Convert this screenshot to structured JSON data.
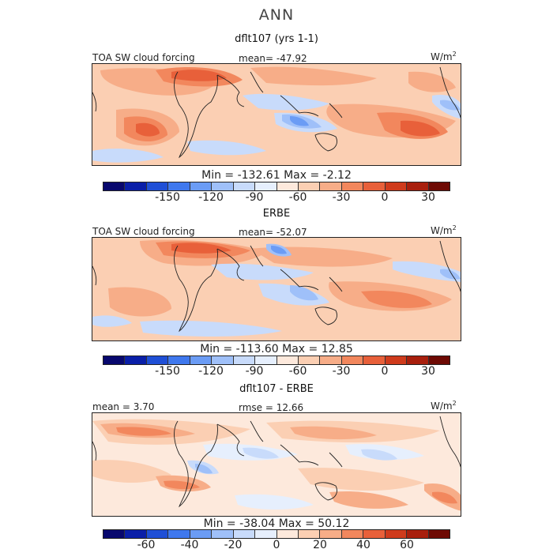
{
  "title": "ANN",
  "colors": {
    "scale": [
      "#08086e",
      "#0a1fa8",
      "#1f4fd6",
      "#3f78ee",
      "#6b9cf5",
      "#9fc0f9",
      "#c8dbfb",
      "#e6effd",
      "#fde9dc",
      "#fbcfb3",
      "#f7ad88",
      "#f2875d",
      "#e8603a",
      "#cf3b1c",
      "#a81f0d",
      "#6e0a04"
    ]
  },
  "panels": [
    {
      "title": "dflt107 (yrs 1-1)",
      "left_label": "TOA SW cloud forcing",
      "center_label": "mean= -47.92",
      "units": "W/m",
      "units_sup": "2",
      "min_label": "Min = -132.61 Max =  -2.12",
      "ticks": [
        "-150",
        "-120",
        "-90",
        "-60",
        "-30",
        "0",
        "30"
      ]
    },
    {
      "title": "ERBE",
      "left_label": "TOA SW cloud forcing",
      "center_label": "mean= -52.07",
      "units": "W/m",
      "units_sup": "2",
      "min_label": "Min = -113.60 Max =  12.85",
      "ticks": [
        "-150",
        "-120",
        "-90",
        "-60",
        "-30",
        "0",
        "30"
      ]
    },
    {
      "title": "dflt107 - ERBE",
      "left_label": "mean =   3.70",
      "center_label": "rmse =  12.66",
      "units": "W/m",
      "units_sup": "2",
      "min_label": "Min = -38.04 Max =  50.12",
      "ticks": [
        "-60",
        "-40",
        "-20",
        "0",
        "20",
        "40",
        "60"
      ]
    }
  ]
}
